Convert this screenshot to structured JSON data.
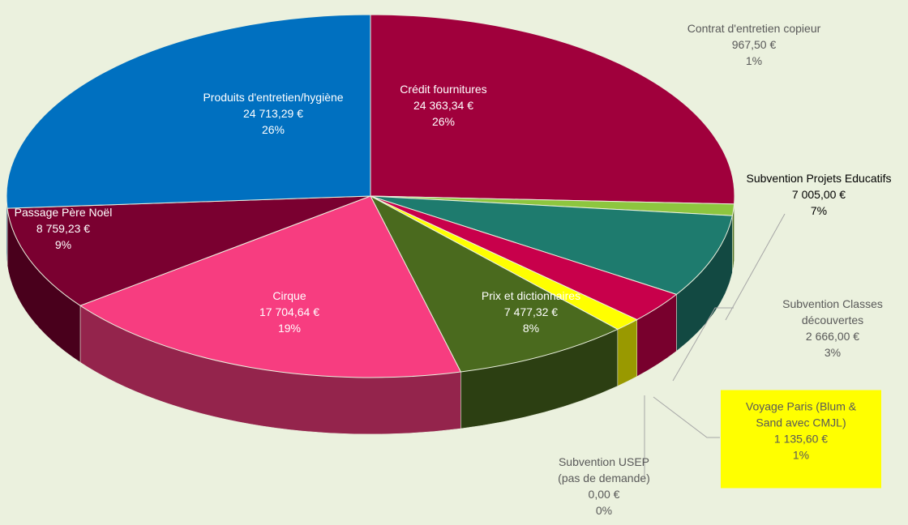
{
  "chart_data": {
    "type": "pie3d",
    "categories": [
      "Crédit fournitures",
      "Contrat d'entretien copieur",
      "Subvention Projets Educatifs",
      "Subvention Classes découvertes",
      "Voyage Paris (Blum & Sand avec CMJL)",
      "Subvention USEP (pas de demande)",
      "Prix et dictionnaires",
      "Cirque",
      "Passage Père Noël",
      "Produits d'entretien/hygiène"
    ],
    "values": [
      24363.34,
      967.5,
      7005.0,
      2666.0,
      1135.6,
      0.0,
      7477.32,
      17704.64,
      8759.23,
      24713.29
    ],
    "value_labels": [
      "24 363,34 €",
      "967,50 €",
      "7 005,00 €",
      "2 666,00 €",
      "1 135,60 €",
      "0,00 €",
      "7 477,32 €",
      "17 704,64 €",
      "8 759,23 €",
      "24 713,29 €"
    ],
    "percent_labels": [
      "26%",
      "1%",
      "7%",
      "3%",
      "1%",
      "0%",
      "8%",
      "19%",
      "9%",
      "26%"
    ],
    "colors": [
      "#a0003c",
      "#8dc63f",
      "#1e7b6e",
      "#c8004b",
      "#ffff00",
      "#9a9a9a",
      "#4a6a1e",
      "#f73d80",
      "#7a0030",
      "#0070c0"
    ]
  }
}
